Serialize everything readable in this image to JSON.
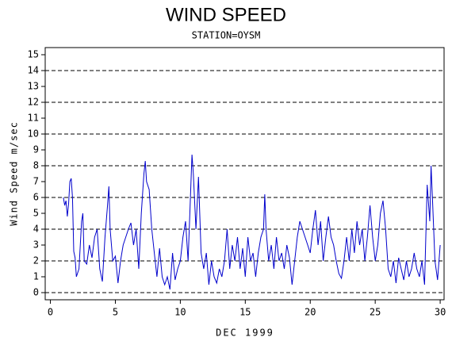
{
  "chart_data": {
    "type": "line",
    "title": "WIND SPEED",
    "subtitle": "STATION=OYSM",
    "x_label": "DEC 1999",
    "y_label": "Wind Speed m/sec",
    "xlim": [
      -0.4,
      30.3
    ],
    "xticks": [
      0,
      5,
      10,
      15,
      20,
      25,
      30
    ],
    "ylim": [
      -0.45,
      15.45
    ],
    "yticks": [
      0,
      1,
      2,
      3,
      4,
      5,
      6,
      7,
      8,
      9,
      10,
      11,
      12,
      13,
      14,
      15
    ],
    "grid": true,
    "grid_values": [
      0,
      2,
      4,
      6,
      8,
      10,
      12,
      14
    ],
    "series": [
      {
        "name": "Wind Speed",
        "color": "#0000cc",
        "x": [
          1.0,
          1.1,
          1.2,
          1.3,
          1.4,
          1.5,
          1.6,
          1.7,
          1.8,
          1.9,
          2.0,
          2.2,
          2.4,
          2.5,
          2.6,
          2.8,
          3.0,
          3.2,
          3.4,
          3.6,
          3.8,
          4.0,
          4.2,
          4.4,
          4.5,
          4.6,
          4.8,
          5.0,
          5.2,
          5.4,
          5.6,
          5.8,
          6.0,
          6.2,
          6.4,
          6.6,
          6.8,
          7.0,
          7.2,
          7.3,
          7.4,
          7.6,
          7.8,
          8.0,
          8.2,
          8.4,
          8.6,
          8.8,
          9.0,
          9.2,
          9.4,
          9.6,
          9.8,
          10.0,
          10.2,
          10.4,
          10.6,
          10.8,
          10.9,
          11.0,
          11.2,
          11.4,
          11.6,
          11.8,
          12.0,
          12.2,
          12.4,
          12.6,
          12.8,
          13.0,
          13.2,
          13.4,
          13.6,
          13.8,
          14.0,
          14.2,
          14.4,
          14.6,
          14.8,
          15.0,
          15.2,
          15.4,
          15.6,
          15.8,
          16.0,
          16.2,
          16.4,
          16.5,
          16.6,
          16.8,
          17.0,
          17.2,
          17.4,
          17.6,
          17.8,
          18.0,
          18.2,
          18.4,
          18.6,
          18.8,
          19.0,
          19.2,
          19.4,
          19.6,
          19.8,
          20.0,
          20.2,
          20.4,
          20.6,
          20.8,
          21.0,
          21.2,
          21.4,
          21.6,
          21.8,
          22.0,
          22.2,
          22.4,
          22.6,
          22.8,
          23.0,
          23.2,
          23.4,
          23.6,
          23.8,
          24.0,
          24.2,
          24.4,
          24.6,
          24.8,
          25.0,
          25.2,
          25.4,
          25.6,
          25.8,
          26.0,
          26.2,
          26.4,
          26.6,
          26.8,
          27.0,
          27.2,
          27.4,
          27.6,
          27.8,
          28.0,
          28.2,
          28.4,
          28.6,
          28.8,
          29.0,
          29.2,
          29.3,
          29.4,
          29.6,
          29.8,
          30.0
        ],
        "values": [
          6,
          5.5,
          5.8,
          4.8,
          5.6,
          7.0,
          7.2,
          6.0,
          2.6,
          2.2,
          1.0,
          1.5,
          4.5,
          5.0,
          2.0,
          1.8,
          3.0,
          2.2,
          3.5,
          4.0,
          1.5,
          0.7,
          3.5,
          5.5,
          6.7,
          4.0,
          2.0,
          2.3,
          0.6,
          2.0,
          3.0,
          3.5,
          4.0,
          4.4,
          3.0,
          4.0,
          1.5,
          5.0,
          7.5,
          8.3,
          7.0,
          6.5,
          4.0,
          2.5,
          1.0,
          2.8,
          1.0,
          0.5,
          1.0,
          0.2,
          2.5,
          0.8,
          1.5,
          2.0,
          3.5,
          4.5,
          2.0,
          6.5,
          8.7,
          7.5,
          4.0,
          7.3,
          2.5,
          1.5,
          2.5,
          0.5,
          2.0,
          1.0,
          0.6,
          1.5,
          1.0,
          2.0,
          4.0,
          1.5,
          3.0,
          2.0,
          3.5,
          1.5,
          2.8,
          1.0,
          3.5,
          2.0,
          2.5,
          1.0,
          2.5,
          3.5,
          4.0,
          6.2,
          4.0,
          2.0,
          3.0,
          1.5,
          3.5,
          2.0,
          2.5,
          1.5,
          3.0,
          2.2,
          0.5,
          2.0,
          3.5,
          4.5,
          4.0,
          3.5,
          3.0,
          2.5,
          4.0,
          5.2,
          3.0,
          4.5,
          2.0,
          3.5,
          4.8,
          3.5,
          3.0,
          2.0,
          1.2,
          0.9,
          2.0,
          3.5,
          2.0,
          4.0,
          2.5,
          4.5,
          3.0,
          4.0,
          2.0,
          3.5,
          5.5,
          3.5,
          2.0,
          3.0,
          5.0,
          5.8,
          4.0,
          1.5,
          1.0,
          2.0,
          0.6,
          2.2,
          1.5,
          0.8,
          2.0,
          1.0,
          1.5,
          2.5,
          1.5,
          1.0,
          2.0,
          0.5,
          6.8,
          4.5,
          8.0,
          6.0,
          2.0,
          0.8,
          3.0
        ]
      }
    ]
  }
}
